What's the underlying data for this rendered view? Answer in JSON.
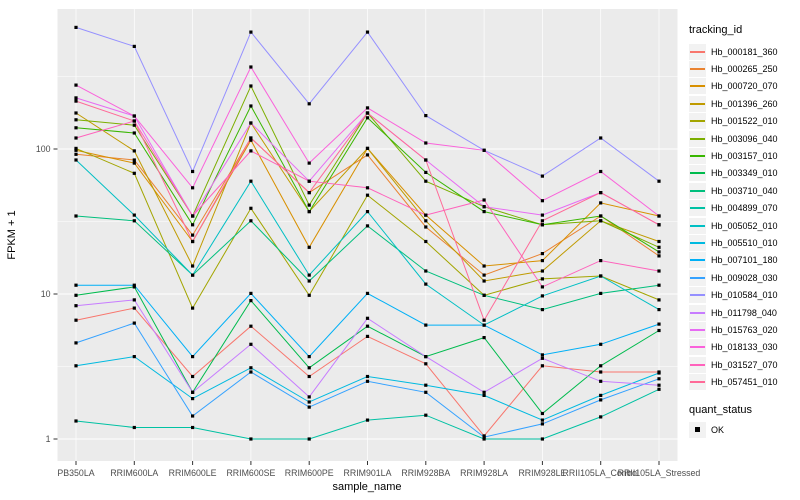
{
  "chart_data": {
    "type": "line",
    "title": "",
    "xlabel": "sample_name",
    "ylabel": "FPKM + 1",
    "y_scale": "log10",
    "y_ticks": [
      "1",
      "10",
      "100"
    ],
    "y_tick_values": [
      1,
      10,
      100
    ],
    "y_minor_values": [
      3.162,
      31.62,
      316.2
    ],
    "ylim": [
      0.7,
      940
    ],
    "grid": true,
    "legend_position": "right",
    "plot_bg": "#EBEBEB",
    "grid_color": "#FFFFFF",
    "tick_label_color": "#4D4D4D",
    "marker": {
      "shape": "square",
      "color": "#000000",
      "size": 3.2
    },
    "legend_title": "tracking_id",
    "quant_legend": {
      "title": "quant_status",
      "items": [
        "OK"
      ]
    },
    "x_categories": [
      "PB350LA",
      "RRIM600LA",
      "RRIM600LE",
      "RRIM600SE",
      "RRIM600PE",
      "RRIM901LA",
      "RRIM928BA",
      "RRIM928LA",
      "RRIM928LE",
      "RRII105LA_Control",
      "RRII105LA_Stressed"
    ],
    "series": [
      {
        "name": "Hb_000181_360",
        "color": "#F8766D",
        "values": [
          6.6,
          8.0,
          2.7,
          6.0,
          2.7,
          5.1,
          3.3,
          1.05,
          3.2,
          2.9,
          2.9
        ]
      },
      {
        "name": "Hb_000265_250",
        "color": "#EA8331",
        "values": [
          92,
          84,
          25.5,
          119,
          50,
          91,
          29,
          13.5,
          19,
          34.5,
          18.3
        ]
      },
      {
        "name": "Hb_000720_070",
        "color": "#D89000",
        "values": [
          98,
          80,
          23,
          115,
          21,
          101,
          35,
          15.6,
          17,
          42.5,
          34.5
        ]
      },
      {
        "name": "Hb_001396_260",
        "color": "#C09B00",
        "values": [
          177,
          97,
          15.6,
          151,
          37,
          101,
          32,
          12.3,
          14.4,
          32,
          23
        ]
      },
      {
        "name": "Hb_001522_010",
        "color": "#A3A500",
        "values": [
          101,
          68,
          8.0,
          39,
          9.8,
          48,
          23,
          9.8,
          12.7,
          13.3,
          9.1
        ]
      },
      {
        "name": "Hb_003096_040",
        "color": "#7CAE00",
        "values": [
          159,
          146,
          34.5,
          272,
          41,
          177,
          60,
          40,
          30,
          32,
          21
        ]
      },
      {
        "name": "Hb_003157_010",
        "color": "#39B600",
        "values": [
          140,
          129,
          30,
          198,
          37,
          164,
          69,
          37,
          30,
          34.5,
          19.5
        ]
      },
      {
        "name": "Hb_003349_010",
        "color": "#00BB4E",
        "values": [
          9.8,
          11.2,
          2.1,
          9.0,
          3.1,
          6.0,
          3.7,
          5.0,
          1.5,
          3.2,
          5.6
        ]
      },
      {
        "name": "Hb_003710_040",
        "color": "#00BF7D",
        "values": [
          34.5,
          32,
          13.5,
          32,
          12.3,
          29.5,
          14.4,
          9.8,
          7.8,
          10.1,
          11.5
        ]
      },
      {
        "name": "Hb_004899_070",
        "color": "#00C1A3",
        "values": [
          1.33,
          1.2,
          1.2,
          1.0,
          1.0,
          1.35,
          1.46,
          1.0,
          1.0,
          1.42,
          2.2
        ]
      },
      {
        "name": "Hb_005052_010",
        "color": "#00BFC4",
        "values": [
          84,
          35,
          13.5,
          60,
          13.5,
          37,
          11.7,
          6.1,
          9.7,
          13.3,
          7.8
        ]
      },
      {
        "name": "Hb_005510_010",
        "color": "#00BAE0",
        "values": [
          3.2,
          3.7,
          1.9,
          3.1,
          1.8,
          2.7,
          2.35,
          2.0,
          1.35,
          2.0,
          2.85
        ]
      },
      {
        "name": "Hb_007101_180",
        "color": "#00B0F6",
        "values": [
          11.5,
          11.5,
          3.7,
          10.1,
          3.7,
          10.1,
          6.1,
          6.1,
          3.8,
          4.5,
          6.2
        ]
      },
      {
        "name": "Hb_009028_030",
        "color": "#35A2FF",
        "values": [
          4.6,
          6.3,
          1.44,
          2.9,
          1.66,
          2.5,
          2.1,
          1.03,
          1.27,
          1.86,
          2.6
        ]
      },
      {
        "name": "Hb_010584_010",
        "color": "#9590FF",
        "values": [
          690,
          510,
          70,
          640,
          205,
          640,
          170,
          98,
          65,
          119,
          60
        ]
      },
      {
        "name": "Hb_011798_040",
        "color": "#C77CFF",
        "values": [
          8.3,
          9.1,
          2.1,
          4.5,
          1.95,
          6.8,
          3.7,
          2.1,
          3.6,
          2.5,
          2.35
        ]
      },
      {
        "name": "Hb_015763_020",
        "color": "#E76BF3",
        "values": [
          225,
          169,
          34.5,
          151,
          60,
          177,
          84,
          40,
          35,
          50,
          30
        ]
      },
      {
        "name": "Hb_018133_030",
        "color": "#FA62DB",
        "values": [
          276,
          169,
          54,
          368,
          80,
          192,
          110,
          98,
          44,
          70,
          34.5
        ]
      },
      {
        "name": "Hb_031527_070",
        "color": "#FF62BC",
        "values": [
          119,
          156,
          34.5,
          97,
          60,
          54,
          35,
          44.5,
          11.2,
          17,
          14.4
        ]
      },
      {
        "name": "Hb_057451_010",
        "color": "#FF6A98",
        "values": [
          214,
          156,
          23,
          119,
          50,
          177,
          84,
          6.6,
          32,
          50,
          30
        ]
      }
    ]
  }
}
